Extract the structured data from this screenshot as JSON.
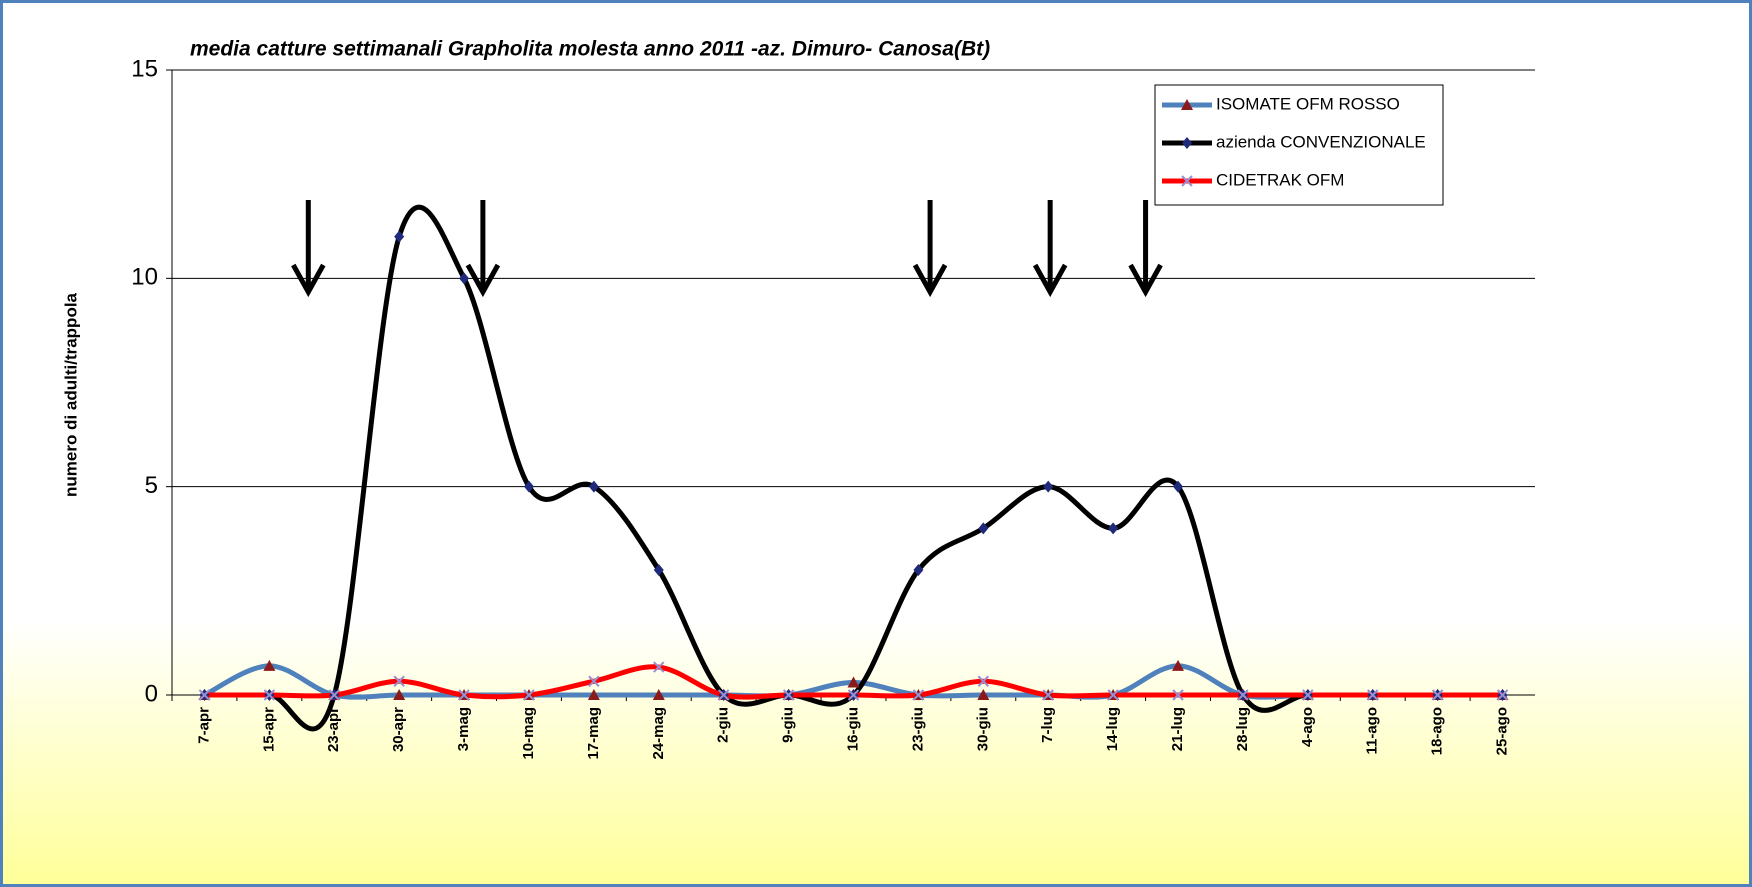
{
  "chart_data": {
    "type": "line",
    "title": "media catture settimanali Grapholita molesta anno 2011 -az. Dimuro- Canosa(Bt)",
    "y_label": "numero di adulti/trappola",
    "categories": [
      "7-apr",
      "15-apr",
      "23-apr",
      "30-apr",
      "3-mag",
      "10-mag",
      "17-mag",
      "24-mag",
      "2-giu",
      "9-giu",
      "16-giu",
      "23-giu",
      "30-giu",
      "7-lug",
      "14-lug",
      "21-lug",
      "28-lug",
      "4-ago",
      "11-ago",
      "18-ago",
      "25-ago"
    ],
    "series": [
      {
        "name": "ISOMATE OFM ROSSO",
        "color": "#4f81bd",
        "marker_color": "#8b1a1a",
        "marker": "triangle",
        "values": [
          0,
          0.7,
          0,
          0,
          0,
          0,
          0,
          0,
          0,
          0,
          0.3,
          0,
          0,
          0,
          0,
          0.7,
          0,
          0,
          0,
          0,
          0
        ]
      },
      {
        "name": "azienda CONVENZIONALE",
        "color": "#000000",
        "marker_color": "#1f2a7a",
        "marker": "diamond",
        "values": [
          0,
          0,
          0,
          11,
          10,
          5,
          5,
          3,
          0,
          0,
          0,
          3,
          4,
          5,
          4,
          5,
          0,
          0,
          0,
          0,
          0
        ]
      },
      {
        "name": "CIDETRAK OFM",
        "color": "#ff0000",
        "marker_color": "#9a8fd0",
        "marker": "x",
        "values": [
          0,
          0,
          0,
          0.33,
          0,
          0,
          0.33,
          0.67,
          0,
          0,
          0,
          0,
          0.33,
          0,
          0,
          0,
          0,
          0,
          0,
          0,
          0
        ]
      }
    ],
    "ylim": [
      0,
      15
    ],
    "yticks": [
      0,
      5,
      10,
      15
    ],
    "grid": true,
    "smooth": true,
    "legend": "upper right"
  }
}
